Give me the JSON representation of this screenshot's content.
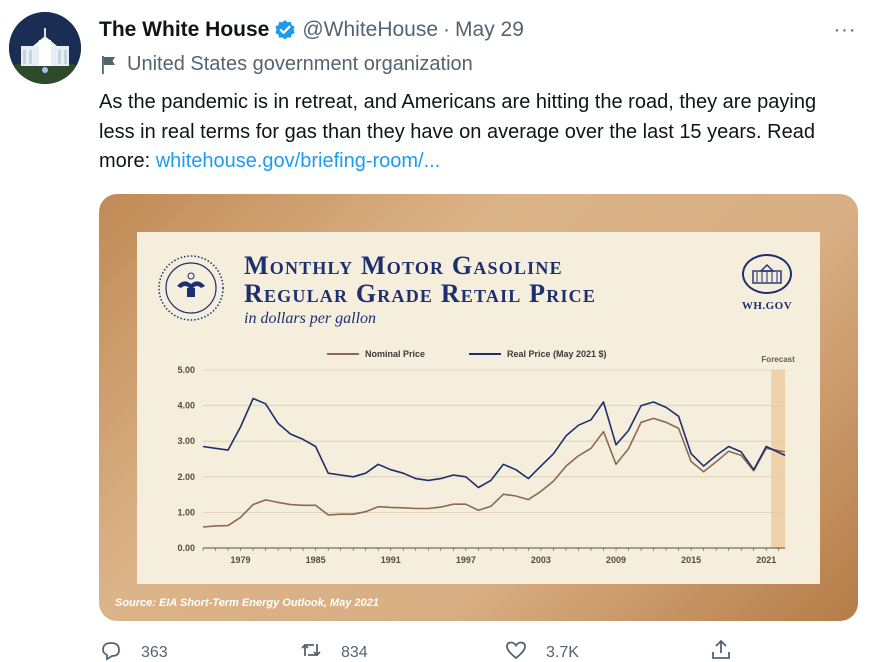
{
  "tweet": {
    "author_name": "The White House",
    "handle": "@WhiteHouse",
    "separator": "·",
    "date": "May 29",
    "label": "United States government organization",
    "text_before_link": "As the pandemic is in retreat, and Americans are hitting the road, they are paying less in real terms for gas than they have on average over the last 15 years. Read more: ",
    "link_text": "whitehouse.gov/briefing-room/...",
    "more_label": "···",
    "verified_icon": "verified-badge-icon",
    "accent_color": "#1d9bf0"
  },
  "media": {
    "title_line1": "Monthly Motor Gasoline",
    "title_line2": "Regular Grade Retail Price",
    "subtitle": "in dollars per gallon",
    "logo_text": "WH.GOV",
    "source": "Source: EIA Short-Term Energy Outlook, May 2021"
  },
  "actions": {
    "reply_count": "363",
    "retweet_count": "834",
    "like_count": "3.7K"
  },
  "chart_data": {
    "type": "line",
    "title": "Monthly Motor Gasoline Regular Grade Retail Price",
    "subtitle": "in dollars per gallon",
    "xlim": [
      1976,
      2022.5
    ],
    "ylim": [
      0,
      5
    ],
    "y_ticks": [
      "0.00",
      "1.00",
      "2.00",
      "3.00",
      "4.00",
      "5.00"
    ],
    "x_ticks": [
      "1979",
      "1985",
      "1991",
      "1997",
      "2003",
      "2009",
      "2015",
      "2021"
    ],
    "legend": [
      "Nominal Price",
      "Real Price (May 2021 $)"
    ],
    "legend_position": "top-center",
    "forecast_label": "Forecast",
    "forecast_range": [
      2021.4,
      2022.5
    ],
    "grid": true,
    "colors": {
      "nominal": "#8a6a52",
      "real": "#1c2f6e",
      "forecast": "#efd2aa"
    },
    "series": [
      {
        "name": "Nominal Price",
        "x": [
          1976,
          1977,
          1978,
          1979,
          1980,
          1981,
          1982,
          1983,
          1984,
          1985,
          1986,
          1987,
          1988,
          1989,
          1990,
          1991,
          1992,
          1993,
          1994,
          1995,
          1996,
          1997,
          1998,
          1999,
          2000,
          2001,
          2002,
          2003,
          2004,
          2005,
          2006,
          2007,
          2008,
          2009,
          2010,
          2011,
          2012,
          2013,
          2014,
          2015,
          2016,
          2017,
          2018,
          2019,
          2020,
          2021,
          2022.5
        ],
        "y": [
          0.59,
          0.62,
          0.63,
          0.86,
          1.22,
          1.35,
          1.28,
          1.22,
          1.2,
          1.2,
          0.93,
          0.95,
          0.95,
          1.02,
          1.16,
          1.14,
          1.13,
          1.11,
          1.11,
          1.15,
          1.23,
          1.23,
          1.06,
          1.17,
          1.51,
          1.46,
          1.36,
          1.59,
          1.88,
          2.3,
          2.59,
          2.8,
          3.27,
          2.35,
          2.79,
          3.53,
          3.64,
          3.53,
          3.36,
          2.43,
          2.14,
          2.42,
          2.72,
          2.6,
          2.17,
          2.8,
          2.7
        ]
      },
      {
        "name": "Real Price (May 2021 $)",
        "x": [
          1976,
          1977,
          1978,
          1979,
          1980,
          1981,
          1982,
          1983,
          1984,
          1985,
          1986,
          1987,
          1988,
          1989,
          1990,
          1991,
          1992,
          1993,
          1994,
          1995,
          1996,
          1997,
          1998,
          1999,
          2000,
          2001,
          2002,
          2003,
          2004,
          2005,
          2006,
          2007,
          2008,
          2009,
          2010,
          2011,
          2012,
          2013,
          2014,
          2015,
          2016,
          2017,
          2018,
          2019,
          2020,
          2021,
          2022.5
        ],
        "y": [
          2.85,
          2.8,
          2.75,
          3.4,
          4.2,
          4.05,
          3.5,
          3.2,
          3.05,
          2.85,
          2.1,
          2.05,
          2.0,
          2.1,
          2.35,
          2.2,
          2.1,
          1.95,
          1.9,
          1.95,
          2.05,
          2.0,
          1.7,
          1.9,
          2.35,
          2.2,
          1.95,
          2.3,
          2.65,
          3.15,
          3.45,
          3.6,
          4.1,
          2.9,
          3.3,
          4.0,
          4.1,
          3.95,
          3.7,
          2.65,
          2.3,
          2.6,
          2.85,
          2.7,
          2.2,
          2.85,
          2.6
        ]
      }
    ]
  }
}
